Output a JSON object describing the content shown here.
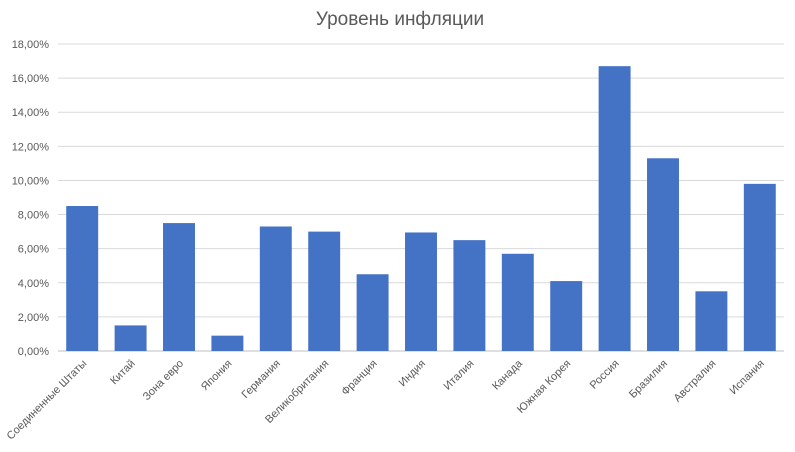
{
  "chart_data": {
    "type": "bar",
    "title": "Уровень инфляции",
    "xlabel": "",
    "ylabel": "",
    "categories": [
      "Соединенные Штаты",
      "Китай",
      "Зона евро",
      "Япония",
      "Германия",
      "Великобритания",
      "Франция",
      "Индия",
      "Италия",
      "Канада",
      "Южная Корея",
      "Россия",
      "Бразилия",
      "Австралия",
      "Испания"
    ],
    "values": [
      8.5,
      1.5,
      7.5,
      0.9,
      7.3,
      7.0,
      4.5,
      6.95,
      6.5,
      5.7,
      4.1,
      16.7,
      11.3,
      3.5,
      9.8
    ],
    "ylim": [
      0,
      18
    ],
    "yticks": [
      0,
      2,
      4,
      6,
      8,
      10,
      12,
      14,
      16,
      18
    ],
    "ytick_labels": [
      "0,00%",
      "2,00%",
      "4,00%",
      "6,00%",
      "8,00%",
      "10,00%",
      "12,00%",
      "14,00%",
      "16,00%",
      "18,00%"
    ],
    "bar_color": "#4472C4",
    "grid": true,
    "legend": "none"
  }
}
